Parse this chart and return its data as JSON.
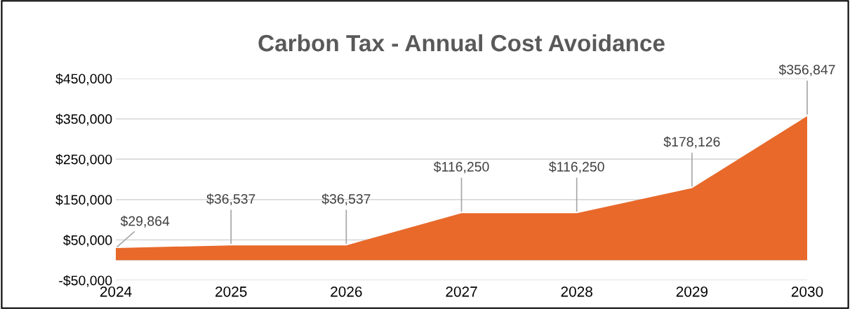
{
  "chart_data": {
    "type": "area",
    "title": "Carbon Tax - Annual Cost Avoidance",
    "categories": [
      "2024",
      "2025",
      "2026",
      "2027",
      "2028",
      "2029",
      "2030"
    ],
    "series": [
      {
        "color": "#e8692a",
        "values": [
          29864,
          36537,
          36537,
          116250,
          116250,
          178126,
          356847
        ]
      }
    ],
    "value_labels": [
      "$29,864",
      "$36,537",
      "$36,537",
      "$116,250",
      "$116,250",
      "$178,126",
      "$356,847"
    ],
    "ylim": [
      -50000,
      450000
    ],
    "yticks": [
      {
        "value": -50000,
        "label": "-$50,000"
      },
      {
        "value": 50000,
        "label": "$50,000"
      },
      {
        "value": 150000,
        "label": "$150,000"
      },
      {
        "value": 250000,
        "label": "$250,000"
      },
      {
        "value": 350000,
        "label": "$350,000"
      },
      {
        "value": 450000,
        "label": "$450,000"
      }
    ],
    "grid": "y",
    "legend": false
  }
}
